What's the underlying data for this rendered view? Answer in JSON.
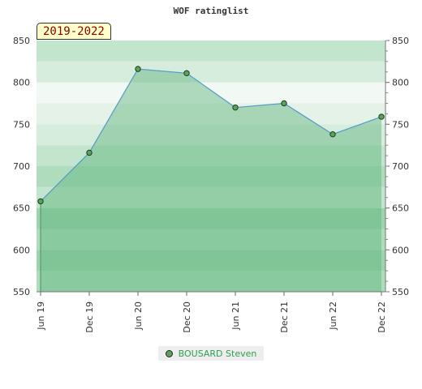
{
  "chart_data": {
    "type": "area",
    "title": "WOF ratinglist",
    "period_label": "2019-2022",
    "xlabel": "",
    "ylabel": "",
    "categories": [
      "Jun 19",
      "Dec 19",
      "Jun 20",
      "Dec 20",
      "Jun 21",
      "Dec 21",
      "Jun 22",
      "Dec 22"
    ],
    "series": [
      {
        "name": "BOUSARD Steven",
        "values": [
          658,
          716,
          816,
          811,
          770,
          775,
          738,
          759
        ]
      }
    ],
    "ylim": [
      550,
      850
    ],
    "yticks": [
      550,
      600,
      650,
      700,
      750,
      800,
      850
    ],
    "grid": true,
    "legend_position": "bottom",
    "colors": {
      "line": "#5599cc",
      "fill": "#5ab47a",
      "marker": "#5aa35a",
      "band_dark": "#8ccc9e",
      "band_light": "#cfe9d6",
      "legend_text": "#2e9e4f",
      "badge_bg": "#ffffcc",
      "badge_text": "#8b0000"
    }
  }
}
